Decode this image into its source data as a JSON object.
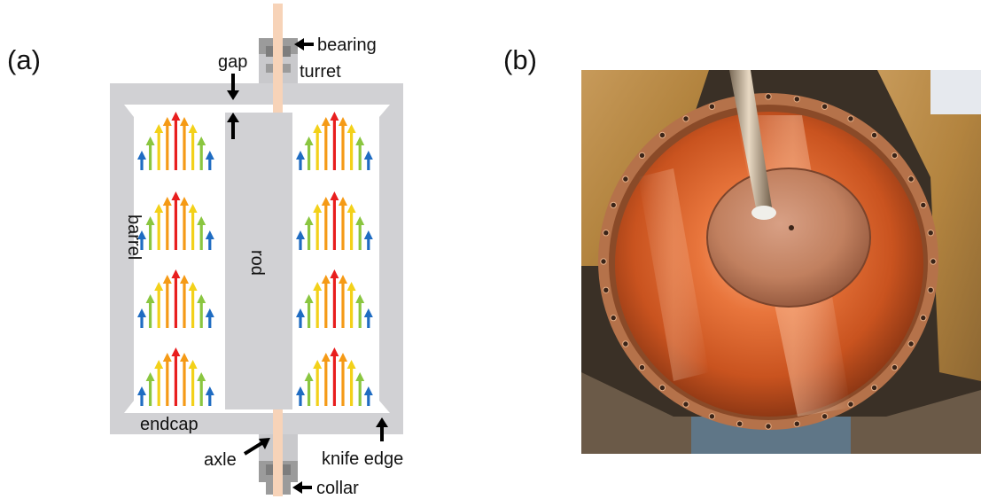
{
  "panels": {
    "a": "(a)",
    "b": "(b)"
  },
  "labels": {
    "bearing": "bearing",
    "gap": "gap",
    "turret": "turret",
    "barrel": "barrel",
    "rod": "rod",
    "endcap": "endcap",
    "axle": "axle",
    "knife_edge": "knife edge",
    "collar": "collar"
  },
  "colors": {
    "structure_gray": "#d1d1d4",
    "bearing_gray": "#9b9b9b",
    "axle_peach": "#f7d3b8",
    "arrow_red": "#e81e1e",
    "arrow_orange": "#f59a16",
    "arrow_yellow": "#f3d11a",
    "arrow_green": "#8ac640",
    "arrow_blue": "#1f6cc2",
    "copper": "#d2642e"
  }
}
